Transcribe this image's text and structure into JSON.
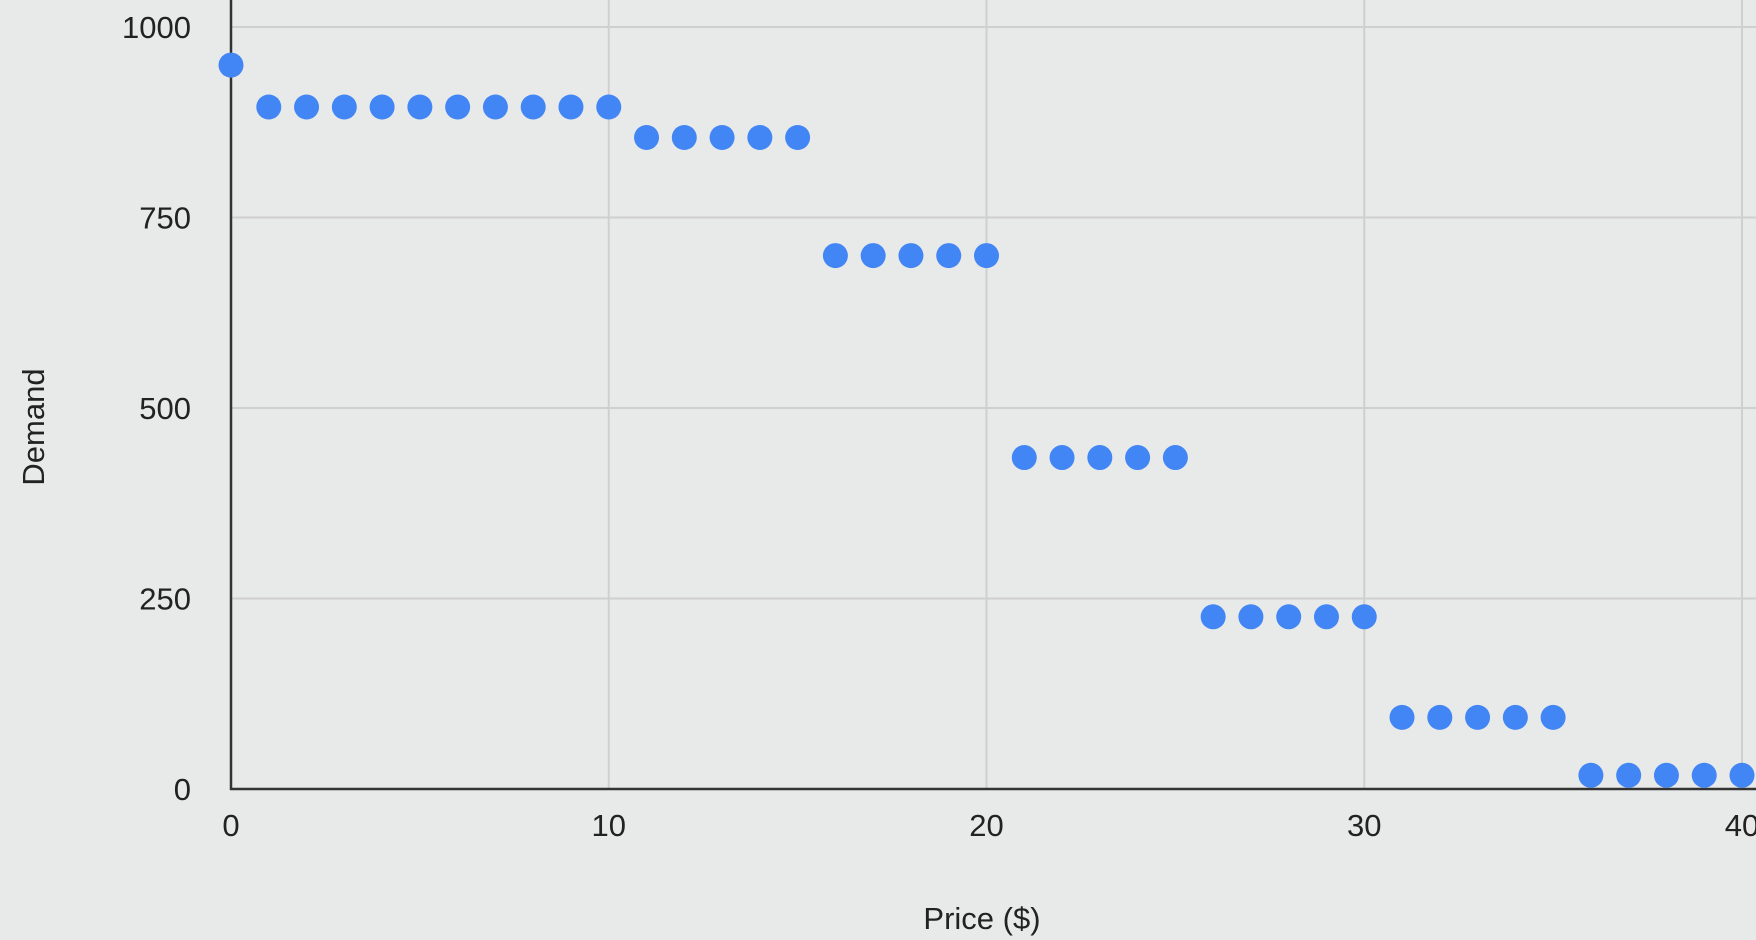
{
  "chart_data": {
    "type": "scatter",
    "title": "",
    "xlabel": "Price ($)",
    "ylabel": "Demand",
    "xlim": [
      0,
      40
    ],
    "ylim": [
      0,
      1000
    ],
    "x_ticks": [
      0,
      10,
      20,
      30,
      40
    ],
    "y_ticks": [
      0,
      250,
      500,
      750,
      1000
    ],
    "grid": true,
    "legend": "none",
    "marker_color": "#4285f4",
    "series": [
      {
        "x": [
          0,
          1,
          2,
          3,
          4,
          5,
          6,
          7,
          8,
          9,
          10,
          11,
          12,
          13,
          14,
          15,
          16,
          17,
          18,
          19,
          20,
          21,
          22,
          23,
          24,
          25,
          26,
          27,
          28,
          29,
          30,
          31,
          32,
          33,
          34,
          35,
          36,
          37,
          38,
          39,
          40
        ],
        "y": [
          950,
          895,
          895,
          895,
          895,
          895,
          895,
          895,
          895,
          895,
          895,
          855,
          855,
          855,
          855,
          855,
          700,
          700,
          700,
          700,
          700,
          435,
          435,
          435,
          435,
          435,
          226,
          226,
          226,
          226,
          226,
          94,
          94,
          94,
          94,
          94,
          18,
          18,
          18,
          18,
          18
        ]
      }
    ]
  },
  "colors": {
    "background": "#e8e9e9",
    "grid": "#cfcfcf",
    "axis": "#333333",
    "marker": "#4285f4"
  }
}
